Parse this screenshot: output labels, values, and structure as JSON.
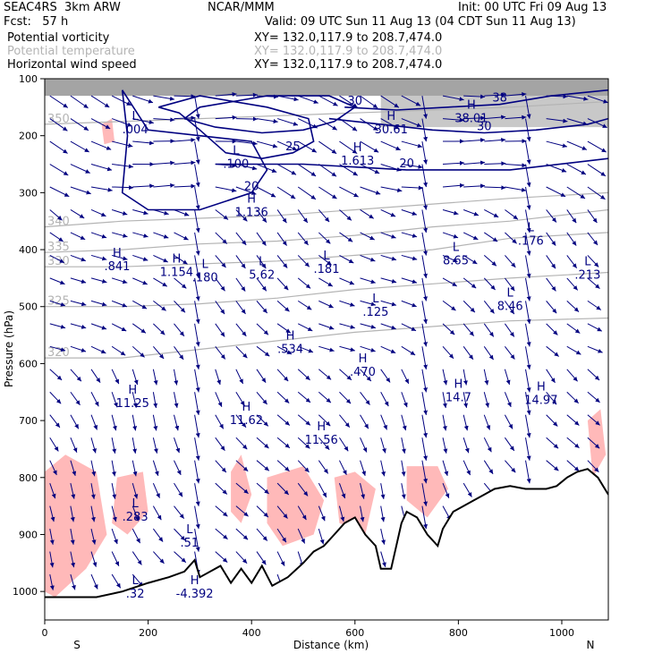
{
  "header": {
    "model": "SEAC4RS  3km ARW",
    "org": "NCAR/MMM",
    "init": "Init: 00 UTC Fri 09 Aug 13",
    "fcst": "Fcst:   57 h",
    "valid": "Valid: 09 UTC Sun 11 Aug 13 (04 CDT Sun 11 Aug 13)",
    "fields": [
      {
        "name": "Potential vorticity",
        "xy": "XY= 132.0,117.9 to 208.7,474.0",
        "color": "#000000"
      },
      {
        "name": "Potential temperature",
        "xy": "XY= 132.0,117.9 to 208.7,474.0",
        "color": "#b4b4b4"
      },
      {
        "name": "Horizontal wind speed",
        "xy": "XY= 132.0,117.9 to 208.7,474.0",
        "color": "#000080"
      }
    ]
  },
  "colors": {
    "pv_fill": "#ffb9b9",
    "pv_contour": "#5a0a3c",
    "theta": "#b4b4b4",
    "wind": "#000080",
    "terrain": "#000000"
  },
  "chart_data": {
    "type": "cross-section",
    "xlabel": "Distance (km)",
    "ylabel": "Pressure (hPa)",
    "xlim": [
      0,
      1090
    ],
    "ylim": [
      1050,
      100
    ],
    "xticks": [
      0,
      200,
      400,
      600,
      800,
      1000
    ],
    "yticks": [
      100,
      200,
      300,
      400,
      500,
      600,
      700,
      800,
      900,
      1000
    ],
    "endpoints": {
      "left": "S",
      "right": "N"
    },
    "terrain": [
      [
        0,
        1010
      ],
      [
        100,
        1010
      ],
      [
        150,
        1000
      ],
      [
        200,
        985
      ],
      [
        240,
        975
      ],
      [
        270,
        965
      ],
      [
        290,
        945
      ],
      [
        300,
        975
      ],
      [
        340,
        955
      ],
      [
        360,
        985
      ],
      [
        380,
        960
      ],
      [
        400,
        985
      ],
      [
        420,
        955
      ],
      [
        440,
        990
      ],
      [
        470,
        975
      ],
      [
        500,
        950
      ],
      [
        520,
        930
      ],
      [
        540,
        920
      ],
      [
        560,
        900
      ],
      [
        580,
        880
      ],
      [
        600,
        870
      ],
      [
        620,
        900
      ],
      [
        640,
        920
      ],
      [
        650,
        960
      ],
      [
        670,
        960
      ],
      [
        690,
        880
      ],
      [
        700,
        860
      ],
      [
        720,
        870
      ],
      [
        740,
        900
      ],
      [
        760,
        920
      ],
      [
        770,
        890
      ],
      [
        790,
        860
      ],
      [
        810,
        850
      ],
      [
        830,
        840
      ],
      [
        850,
        830
      ],
      [
        870,
        820
      ],
      [
        900,
        815
      ],
      [
        930,
        820
      ],
      [
        950,
        820
      ],
      [
        970,
        820
      ],
      [
        990,
        815
      ],
      [
        1010,
        800
      ],
      [
        1030,
        790
      ],
      [
        1050,
        785
      ],
      [
        1070,
        800
      ],
      [
        1090,
        830
      ]
    ],
    "potential_temperature": [
      {
        "label": "320",
        "points": [
          [
            0,
            590
          ],
          [
            150,
            590
          ],
          [
            300,
            575
          ],
          [
            450,
            560
          ],
          [
            600,
            545
          ],
          [
            750,
            535
          ],
          [
            900,
            525
          ],
          [
            1090,
            520
          ]
        ]
      },
      {
        "label": "325",
        "points": [
          [
            0,
            500
          ],
          [
            150,
            500
          ],
          [
            300,
            495
          ],
          [
            450,
            485
          ],
          [
            600,
            470
          ],
          [
            750,
            460
          ],
          [
            900,
            450
          ],
          [
            1090,
            440
          ]
        ]
      },
      {
        "label": "330",
        "points": [
          [
            0,
            430
          ],
          [
            150,
            430
          ],
          [
            300,
            425
          ],
          [
            450,
            420
          ],
          [
            600,
            410
          ],
          [
            750,
            400
          ],
          [
            900,
            380
          ],
          [
            1090,
            370
          ]
        ]
      },
      {
        "label": "335",
        "points": [
          [
            0,
            405
          ],
          [
            150,
            400
          ],
          [
            300,
            390
          ],
          [
            450,
            385
          ],
          [
            600,
            375
          ],
          [
            750,
            360
          ],
          [
            900,
            350
          ],
          [
            1090,
            330
          ]
        ]
      },
      {
        "label": "340",
        "points": [
          [
            0,
            360
          ],
          [
            150,
            350
          ],
          [
            300,
            345
          ],
          [
            450,
            340
          ],
          [
            600,
            330
          ],
          [
            750,
            320
          ],
          [
            900,
            310
          ],
          [
            1090,
            300
          ]
        ]
      },
      {
        "label": "350",
        "points": [
          [
            0,
            180
          ],
          [
            150,
            175
          ],
          [
            300,
            170
          ],
          [
            450,
            165
          ],
          [
            600,
            160
          ],
          [
            750,
            155
          ],
          [
            900,
            150
          ],
          [
            1090,
            140
          ]
        ]
      }
    ],
    "wind_speed_contours": [
      {
        "label": "20",
        "points": [
          [
            150,
            120
          ],
          [
            160,
            200
          ],
          [
            150,
            300
          ],
          [
            200,
            330
          ],
          [
            300,
            330
          ],
          [
            400,
            300
          ],
          [
            430,
            260
          ],
          [
            400,
            210
          ],
          [
            300,
            200
          ],
          [
            200,
            190
          ],
          [
            150,
            120
          ]
        ]
      },
      {
        "label": "25",
        "points": [
          [
            220,
            150
          ],
          [
            260,
            160
          ],
          [
            300,
            190
          ],
          [
            350,
            230
          ],
          [
            420,
            240
          ],
          [
            480,
            230
          ],
          [
            520,
            210
          ],
          [
            510,
            170
          ],
          [
            430,
            150
          ],
          [
            300,
            130
          ],
          [
            220,
            150
          ]
        ]
      },
      {
        "label": "30",
        "points": [
          [
            270,
            170
          ],
          [
            330,
            185
          ],
          [
            420,
            195
          ],
          [
            500,
            190
          ],
          [
            560,
            175
          ],
          [
            600,
            150
          ],
          [
            550,
            130
          ],
          [
            430,
            130
          ],
          [
            300,
            150
          ],
          [
            270,
            170
          ]
        ]
      },
      {
        "label": "30",
        "points": [
          [
            550,
            170
          ],
          [
            650,
            180
          ],
          [
            750,
            190
          ],
          [
            850,
            195
          ],
          [
            950,
            190
          ],
          [
            1050,
            180
          ],
          [
            1090,
            170
          ]
        ]
      },
      {
        "label": "38",
        "points": [
          [
            580,
            150
          ],
          [
            680,
            155
          ],
          [
            780,
            150
          ],
          [
            880,
            145
          ],
          [
            980,
            130
          ],
          [
            1090,
            120
          ]
        ]
      },
      {
        "label": "20",
        "points": [
          [
            330,
            250
          ],
          [
            500,
            250
          ],
          [
            700,
            260
          ],
          [
            900,
            260
          ],
          [
            1090,
            240
          ]
        ]
      }
    ],
    "pv_highs_lows": [
      {
        "type": "L",
        "value": ".004",
        "x": 175,
        "p": 185
      },
      {
        "type": "L",
        "value": ".100",
        "x": 370,
        "p": 245
      },
      {
        "type": "H",
        "value": "1.613",
        "x": 605,
        "p": 240
      },
      {
        "type": "H",
        "value": "30.61",
        "x": 670,
        "p": 185
      },
      {
        "type": "H",
        "value": "38.01",
        "x": 825,
        "p": 165
      },
      {
        "type": "H",
        "value": "1.136",
        "x": 400,
        "p": 330
      },
      {
        "type": "H",
        "value": ".841",
        "x": 140,
        "p": 425
      },
      {
        "type": "H",
        "value": "1.154",
        "x": 255,
        "p": 435
      },
      {
        "type": "L",
        "value": ".180",
        "x": 310,
        "p": 445
      },
      {
        "type": "L",
        "value": "5.62",
        "x": 420,
        "p": 440
      },
      {
        "type": "L",
        "value": ".181",
        "x": 545,
        "p": 430
      },
      {
        "type": "L",
        "value": "8.65",
        "x": 795,
        "p": 415
      },
      {
        "type": "L",
        "value": ".176",
        "x": 940,
        "p": 380
      },
      {
        "type": "L",
        "value": ".213",
        "x": 1050,
        "p": 440
      },
      {
        "type": "L",
        "value": ".125",
        "x": 640,
        "p": 505
      },
      {
        "type": "L",
        "value": "8.46",
        "x": 900,
        "p": 495
      },
      {
        "type": "H",
        "value": ".534",
        "x": 475,
        "p": 570
      },
      {
        "type": "H",
        "value": ".470",
        "x": 615,
        "p": 610
      },
      {
        "type": "H",
        "value": "11.25",
        "x": 170,
        "p": 665
      },
      {
        "type": "H",
        "value": "11.62",
        "x": 390,
        "p": 695
      },
      {
        "type": "H",
        "value": "11.56",
        "x": 535,
        "p": 730
      },
      {
        "type": "H",
        "value": "14.7",
        "x": 800,
        "p": 655
      },
      {
        "type": "H",
        "value": "14.97",
        "x": 960,
        "p": 660
      },
      {
        "type": "L",
        "value": ".283",
        "x": 175,
        "p": 865
      },
      {
        "type": "L",
        "value": ".51",
        "x": 280,
        "p": 910
      },
      {
        "type": "L",
        "value": ".32",
        "x": 175,
        "p": 1000
      },
      {
        "type": "H",
        "value": "-4.392",
        "x": 290,
        "p": 1000
      }
    ],
    "pv_shaded_regions": [
      {
        "points": [
          [
            0,
            790
          ],
          [
            40,
            760
          ],
          [
            100,
            790
          ],
          [
            120,
            900
          ],
          [
            80,
            960
          ],
          [
            20,
            1010
          ],
          [
            0,
            1000
          ]
        ]
      },
      {
        "points": [
          [
            140,
            800
          ],
          [
            190,
            790
          ],
          [
            200,
            860
          ],
          [
            160,
            900
          ],
          [
            130,
            880
          ]
        ]
      },
      {
        "points": [
          [
            360,
            790
          ],
          [
            380,
            760
          ],
          [
            400,
            830
          ],
          [
            380,
            880
          ],
          [
            360,
            860
          ]
        ]
      },
      {
        "points": [
          [
            430,
            800
          ],
          [
            500,
            780
          ],
          [
            540,
            840
          ],
          [
            520,
            900
          ],
          [
            460,
            920
          ],
          [
            430,
            880
          ]
        ]
      },
      {
        "points": [
          [
            560,
            800
          ],
          [
            600,
            790
          ],
          [
            640,
            820
          ],
          [
            620,
            900
          ],
          [
            570,
            880
          ]
        ]
      },
      {
        "points": [
          [
            700,
            780
          ],
          [
            760,
            780
          ],
          [
            780,
            820
          ],
          [
            740,
            870
          ],
          [
            700,
            840
          ]
        ]
      },
      {
        "points": [
          [
            1050,
            700
          ],
          [
            1075,
            680
          ],
          [
            1085,
            760
          ],
          [
            1060,
            800
          ]
        ]
      },
      {
        "points": [
          [
            110,
            180
          ],
          [
            130,
            170
          ],
          [
            135,
            210
          ],
          [
            115,
            215
          ]
        ]
      }
    ]
  }
}
